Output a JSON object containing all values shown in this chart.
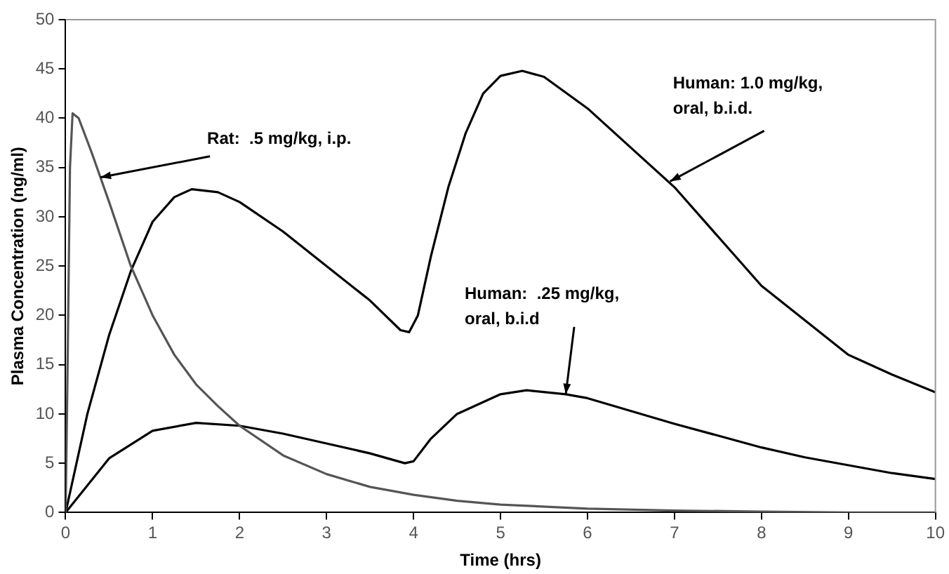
{
  "chart_data": {
    "type": "line",
    "xlabel": "Time (hrs)",
    "ylabel": "Plasma Concentration (ng/ml)",
    "xlim": [
      0,
      10
    ],
    "xticks": [
      0,
      1,
      2,
      3,
      4,
      5,
      6,
      7,
      8,
      9,
      10
    ],
    "ylim": [
      0,
      50
    ],
    "yticks": [
      0,
      5,
      10,
      15,
      20,
      25,
      30,
      35,
      40,
      45,
      50
    ],
    "grid": false,
    "legend": false,
    "marker": "none",
    "line_style": "solid",
    "series": [
      {
        "color": "#555555",
        "x": [
          0,
          0.02,
          0.05,
          0.08,
          0.15,
          0.3,
          0.4,
          0.5,
          0.75,
          1,
          1.25,
          1.5,
          1.75,
          2,
          2.5,
          3,
          3.5,
          4,
          4.5,
          5,
          6,
          7,
          8,
          9,
          10
        ],
        "values": [
          0,
          13,
          35,
          40.5,
          40,
          36.5,
          34,
          31.5,
          25,
          20,
          16,
          13,
          10.8,
          8.8,
          5.8,
          3.9,
          2.6,
          1.8,
          1.2,
          0.8,
          0.4,
          0.2,
          0.1,
          0,
          0
        ]
      },
      {
        "color": "#000000",
        "x": [
          0,
          0.25,
          0.5,
          0.75,
          1,
          1.25,
          1.45,
          1.75,
          2,
          2.5,
          3,
          3.5,
          3.85,
          3.95,
          4.05,
          4.2,
          4.4,
          4.6,
          4.8,
          5,
          5.25,
          5.5,
          6,
          6.5,
          7,
          7.5,
          8,
          8.5,
          9,
          9.5,
          10
        ],
        "values": [
          0,
          10,
          18,
          24.5,
          29.5,
          32,
          32.8,
          32.5,
          31.5,
          28.5,
          25,
          21.5,
          18.5,
          18.3,
          20,
          26,
          33,
          38.5,
          42.5,
          44.3,
          44.8,
          44.2,
          41,
          37,
          33,
          28,
          23,
          19.5,
          16,
          14,
          12.2
        ]
      },
      {
        "color": "#000000",
        "x": [
          0,
          0.5,
          1,
          1.5,
          2,
          2.5,
          3,
          3.5,
          3.9,
          4,
          4.2,
          4.5,
          5,
          5.3,
          5.75,
          6,
          6.5,
          7,
          7.5,
          8,
          8.5,
          9,
          9.5,
          10
        ],
        "values": [
          0,
          5.5,
          8.3,
          9.1,
          8.8,
          8,
          7,
          6,
          5,
          5.2,
          7.5,
          10,
          12,
          12.4,
          12,
          11.6,
          10.3,
          9,
          7.8,
          6.6,
          5.6,
          4.8,
          4,
          3.4
        ]
      }
    ],
    "annotations": [
      {
        "text": "Rat:  .5 mg/kg, i.p.",
        "x": 0.4,
        "y": 34
      },
      {
        "text": "Human: 1.0 mg/kg, oral, b.i.d.",
        "x": 6.95,
        "y": 33.6
      },
      {
        "text": "Human:  .25 mg/kg, oral, b.i.d",
        "x": 5.75,
        "y": 12
      }
    ]
  }
}
